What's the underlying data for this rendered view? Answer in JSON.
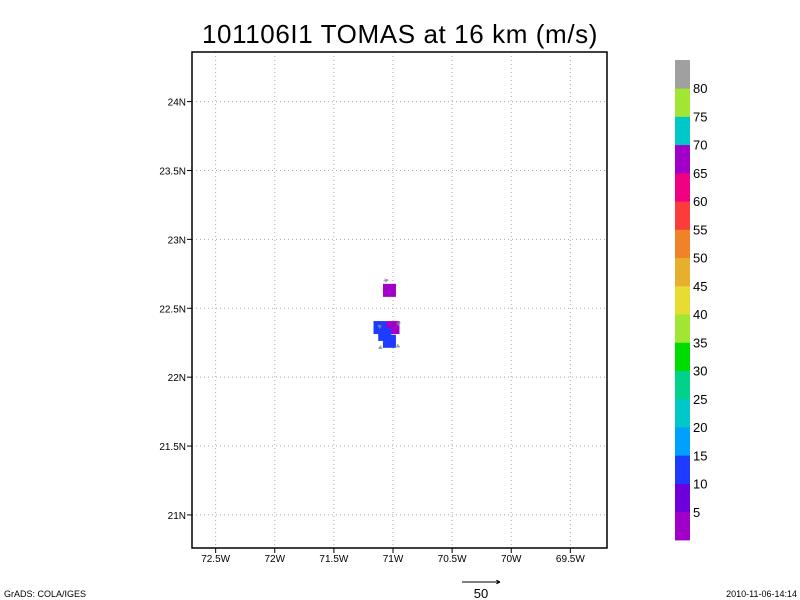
{
  "footer": {
    "left": "GrADS: COLA/IGES",
    "right": "2010-11-06-14:14"
  },
  "chart_data": {
    "type": "heatmap",
    "title": "101106I1 TOMAS at 16 km (m/s)",
    "x_ticks": [
      "72.5W",
      "72W",
      "71.5W",
      "71W",
      "70.5W",
      "70W",
      "69.5W"
    ],
    "y_ticks": [
      "24N",
      "23.5N",
      "23N",
      "22.5N",
      "22N",
      "21.5N",
      "21N"
    ],
    "xlim_W": [
      72.7,
      69.19
    ],
    "ylim_N": [
      20.76,
      24.36
    ],
    "grid": true,
    "cells": [
      {
        "lon_W": 71.03,
        "lat_N": 22.63,
        "value": 3
      },
      {
        "lon_W": 71.11,
        "lat_N": 22.36,
        "value": 12
      },
      {
        "lon_W": 71.0,
        "lat_N": 22.36,
        "value": 3
      },
      {
        "lon_W": 71.07,
        "lat_N": 22.31,
        "value": 12
      },
      {
        "lon_W": 71.03,
        "lat_N": 22.26,
        "value": 12
      }
    ],
    "vectors": [
      {
        "lon_W": 71.08,
        "lat_N": 22.7,
        "u": 6,
        "v": 1
      },
      {
        "lon_W": 71.1,
        "lat_N": 22.36,
        "u": -4,
        "v": 3
      },
      {
        "lon_W": 70.97,
        "lat_N": 22.38,
        "u": 5,
        "v": 3
      },
      {
        "lon_W": 71.09,
        "lat_N": 22.22,
        "u": -5,
        "v": -2
      },
      {
        "lon_W": 70.97,
        "lat_N": 22.23,
        "u": 4,
        "v": -2
      }
    ],
    "vector_reference": {
      "label": "50",
      "value": 50
    },
    "colorbar": {
      "placement": "right",
      "labels": [
        5,
        10,
        15,
        20,
        25,
        30,
        35,
        40,
        45,
        50,
        55,
        60,
        65,
        70,
        75,
        80
      ],
      "colors": [
        "#a000c8",
        "#6e00dc",
        "#1e3cff",
        "#00a0ff",
        "#00c8c8",
        "#00d28c",
        "#00dc00",
        "#a0e632",
        "#e6dc32",
        "#e6af2d",
        "#f08228",
        "#fa3c3c",
        "#f00082",
        "#a000c8",
        "#00c8c8",
        "#a0e632",
        "#a0a0a0"
      ]
    }
  }
}
